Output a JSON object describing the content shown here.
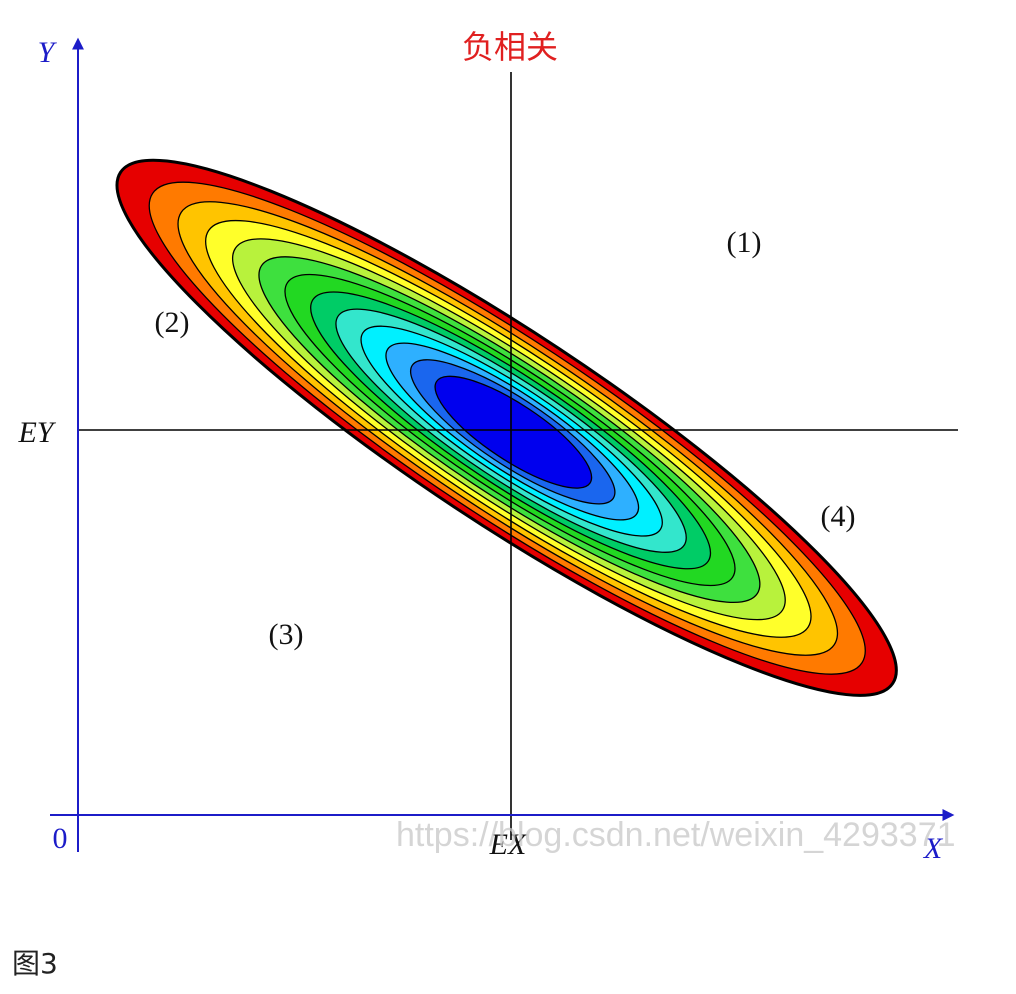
{
  "title": "负相关",
  "axes": {
    "y_label": "Y",
    "x_label": "X",
    "origin_label": "0",
    "mean_y_label": "EY",
    "mean_x_label": "EX"
  },
  "regions": [
    "(1)",
    "(2)",
    "(3)",
    "(4)"
  ],
  "watermark": "https://blog.csdn.net/weixin_4293371",
  "caption": "图3",
  "colors": {
    "axis": "#1c1cc8",
    "title": "#e02020",
    "crosshair": "#000000",
    "contour_line": "#000000",
    "contour_fills_outer_to_inner": [
      "#e60000",
      "#ff7a00",
      "#ffc400",
      "#ffff2a",
      "#b8f23c",
      "#3ee03e",
      "#22d822",
      "#00cc66",
      "#33e6cc",
      "#00f0ff",
      "#2eb0ff",
      "#1a66ee",
      "#0000ee"
    ]
  }
}
